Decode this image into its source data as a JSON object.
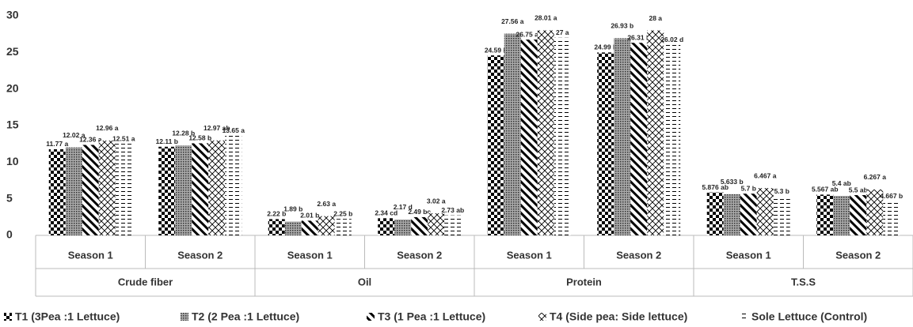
{
  "chart_data": {
    "type": "bar",
    "categories": [
      "Season 1",
      "Season 2",
      "Season 1",
      "Season 2",
      "Season 1",
      "Season 2",
      "Season 1",
      "Season 2"
    ],
    "groups": [
      "Crude fiber",
      "Oil",
      "Protein",
      "T.S.S"
    ],
    "ylim": [
      0,
      30
    ],
    "yticks": [
      0,
      5,
      10,
      15,
      20,
      25,
      30
    ],
    "grid": false,
    "legend": "bottom",
    "series": [
      {
        "name": "T1 (3Pea :1 Lettuce)",
        "color": "#000000",
        "pattern": "checker",
        "values": [
          11.77,
          12.11,
          2.22,
          2.34,
          24.59,
          24.99,
          5.876,
          5.567
        ],
        "value_labels": [
          "11.77 a",
          "12.11 b",
          "2.22 b",
          "2.34 cd",
          "24.59 b",
          "24.99 b",
          "5.876 ab",
          "5.567 ab"
        ]
      },
      {
        "name": "T2 (2 Pea :1 Lettuce)",
        "color": "#555555",
        "pattern": "dots",
        "values": [
          12.02,
          12.28,
          1.89,
          2.17,
          27.56,
          26.93,
          5.633,
          5.4
        ],
        "value_labels": [
          "12.02 a",
          "12.28 b",
          "1.89 b",
          "2.17 d",
          "27.56 a",
          "26.93 b",
          "5.633 b",
          "5.4 ab"
        ]
      },
      {
        "name": "T3 (1 Pea :1 Lettuce)",
        "color": "#000000",
        "pattern": "diagonal",
        "values": [
          12.36,
          12.58,
          2.01,
          2.49,
          26.75,
          26.31,
          5.7,
          5.5
        ],
        "value_labels": [
          "12.36 a",
          "12.58 b",
          "2.01 b",
          "2.49 bc",
          "26.75 ab",
          "26.31 b",
          "5.7 b",
          "5.5 ab"
        ]
      },
      {
        "name": "T4 (Side pea: Side lettuce)",
        "color": "#000000",
        "pattern": "lattice",
        "values": [
          12.96,
          12.97,
          2.63,
          3.02,
          28.01,
          28,
          6.467,
          6.267
        ],
        "value_labels": [
          "12.96 a",
          "12.97 ab",
          "2.63 a",
          "3.02 a",
          "28.01 a",
          "28 a",
          "6.467 a",
          "6.267 a"
        ]
      },
      {
        "name": "Sole Lettuce (Control)",
        "color": "#000000",
        "pattern": "dashes",
        "values": [
          12.51,
          13.65,
          2.25,
          2.73,
          27,
          26.02,
          5.3,
          4.667
        ],
        "value_labels": [
          "12.51 a",
          "13.65 a",
          "2.25 b",
          "2.73 ab",
          "27 a",
          "26.02 d",
          "5.3 b",
          "4.667 b"
        ]
      }
    ]
  }
}
